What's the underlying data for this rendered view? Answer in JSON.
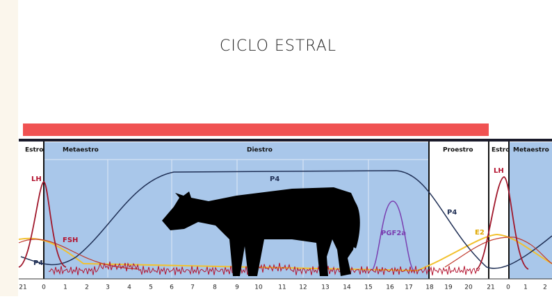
{
  "title": "CICLO ESTRAL",
  "phases": [
    "Estro",
    "Metaestro",
    "Diestro",
    "Proestro",
    "Estro",
    "Metaestro"
  ],
  "hormones": [
    "LH",
    "FSH",
    "P4",
    "P4",
    "PGF2a",
    "P4",
    "E2",
    "LH"
  ],
  "days": [
    "21",
    "0",
    "1",
    "2",
    "3",
    "4",
    "5",
    "6",
    "7",
    "8",
    "9",
    "10",
    "11",
    "12",
    "13",
    "14",
    "15",
    "16",
    "17",
    "18",
    "19",
    "20",
    "21",
    "0",
    "1",
    "2"
  ]
}
